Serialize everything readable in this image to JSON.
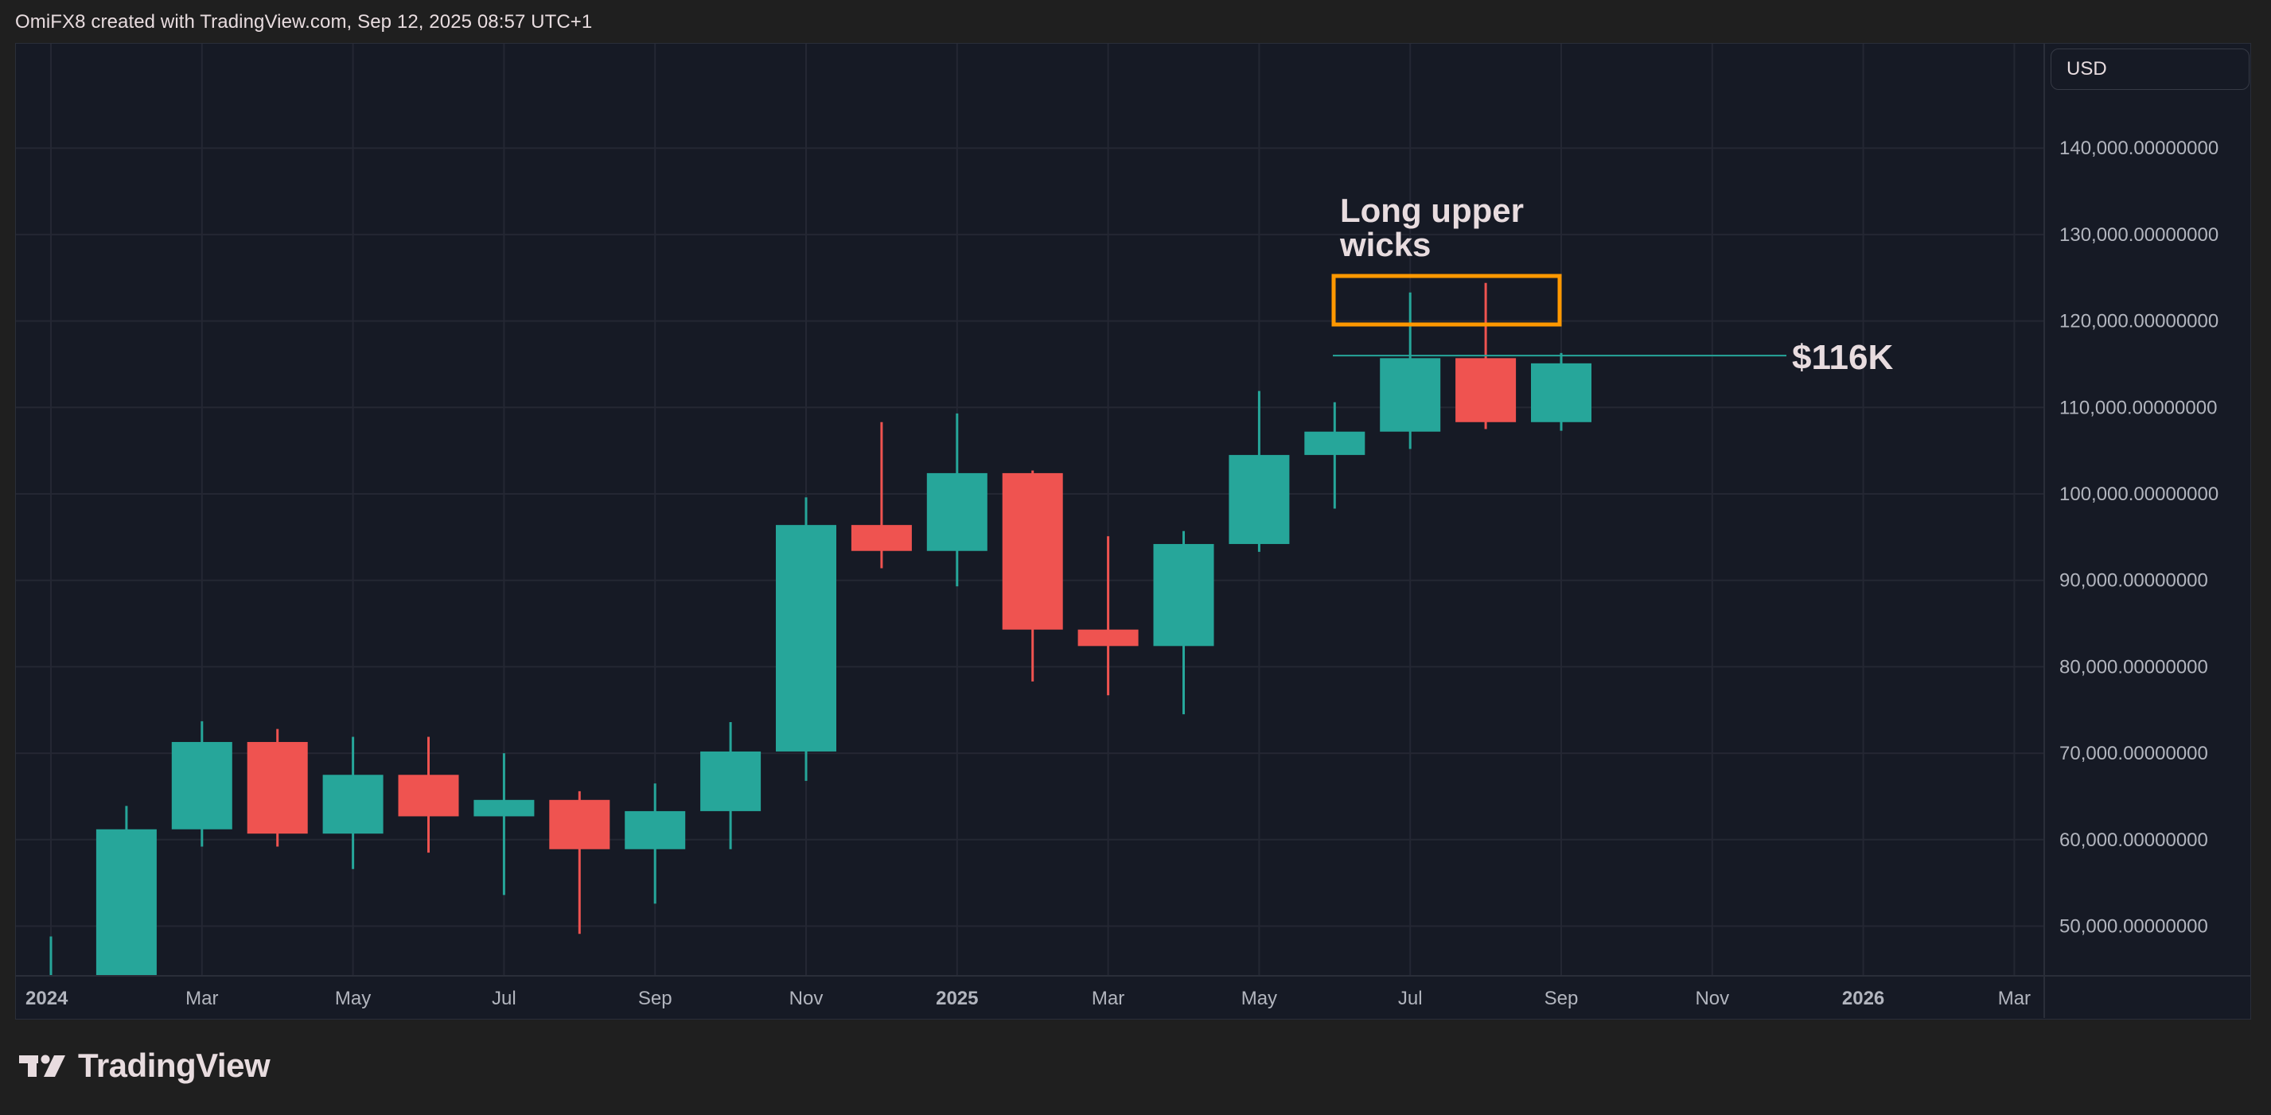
{
  "header": {
    "attribution": "OmiFX8 created with TradingView.com, Sep 12, 2025 08:57 UTC+1"
  },
  "price_scale": {
    "currency": "USD",
    "ticks": [
      "140,000.00000000",
      "130,000.00000000",
      "120,000.00000000",
      "110,000.00000000",
      "100,000.00000000",
      "90,000.00000000",
      "80,000.00000000",
      "70,000.00000000",
      "60,000.00000000",
      "50,000.00000000"
    ]
  },
  "time_scale": {
    "ticks": [
      {
        "label": "2024",
        "bold": true
      },
      {
        "label": "Mar",
        "bold": false
      },
      {
        "label": "May",
        "bold": false
      },
      {
        "label": "Jul",
        "bold": false
      },
      {
        "label": "Sep",
        "bold": false
      },
      {
        "label": "Nov",
        "bold": false
      },
      {
        "label": "2025",
        "bold": true
      },
      {
        "label": "Mar",
        "bold": false
      },
      {
        "label": "May",
        "bold": false
      },
      {
        "label": "Jul",
        "bold": false
      },
      {
        "label": "Sep",
        "bold": false
      },
      {
        "label": "Nov",
        "bold": false
      },
      {
        "label": "2026",
        "bold": true
      },
      {
        "label": "Mar",
        "bold": false
      }
    ]
  },
  "annotations": {
    "text_line1": "Long upper",
    "text_line2": "wicks",
    "level_label": "$116K",
    "box_color": "#ff9800",
    "level_line_color": "#26a69a"
  },
  "colors": {
    "up": "#26a69a",
    "down": "#ef5350",
    "background": "#161a25",
    "grid": "#242733",
    "axis_text": "#b2b5be"
  },
  "footer": {
    "logo_text": "TradingView"
  },
  "chart_data": {
    "type": "candlestick",
    "title": "Monthly candles (USD)",
    "interval": "1M",
    "xlabel": "",
    "ylabel": "USD",
    "ylim": [
      43000,
      148000
    ],
    "grid": true,
    "y_ticks": [
      50000,
      60000,
      70000,
      80000,
      90000,
      100000,
      110000,
      120000,
      130000,
      140000
    ],
    "x_ticks": [
      "2024",
      "Mar",
      "May",
      "Jul",
      "Sep",
      "Nov",
      "2025",
      "Mar",
      "May",
      "Jul",
      "Sep",
      "Nov",
      "2026",
      "Mar"
    ],
    "candles": [
      {
        "month": "2024-01",
        "open": 42500,
        "high": 48800,
        "low": 38500,
        "close": 42600
      },
      {
        "month": "2024-02",
        "open": 42600,
        "high": 63900,
        "low": 42500,
        "close": 61200
      },
      {
        "month": "2024-03",
        "open": 61200,
        "high": 73700,
        "low": 59200,
        "close": 71300
      },
      {
        "month": "2024-04",
        "open": 71300,
        "high": 72800,
        "low": 59200,
        "close": 60700
      },
      {
        "month": "2024-05",
        "open": 60700,
        "high": 71900,
        "low": 56600,
        "close": 67500
      },
      {
        "month": "2024-06",
        "open": 67500,
        "high": 71900,
        "low": 58500,
        "close": 62700
      },
      {
        "month": "2024-07",
        "open": 62700,
        "high": 70000,
        "low": 53600,
        "close": 64600
      },
      {
        "month": "2024-08",
        "open": 64600,
        "high": 65600,
        "low": 49100,
        "close": 58900
      },
      {
        "month": "2024-09",
        "open": 58900,
        "high": 66500,
        "low": 52600,
        "close": 63300
      },
      {
        "month": "2024-10",
        "open": 63300,
        "high": 73600,
        "low": 58900,
        "close": 70200
      },
      {
        "month": "2024-11",
        "open": 70200,
        "high": 99600,
        "low": 66800,
        "close": 96400
      },
      {
        "month": "2024-12",
        "open": 96400,
        "high": 108300,
        "low": 91400,
        "close": 93400
      },
      {
        "month": "2025-01",
        "open": 93400,
        "high": 109300,
        "low": 89300,
        "close": 102400
      },
      {
        "month": "2025-02",
        "open": 102400,
        "high": 102700,
        "low": 78300,
        "close": 84300
      },
      {
        "month": "2025-03",
        "open": 84300,
        "high": 95100,
        "low": 76700,
        "close": 82400
      },
      {
        "month": "2025-04",
        "open": 82400,
        "high": 95700,
        "low": 74500,
        "close": 94200
      },
      {
        "month": "2025-05",
        "open": 94200,
        "high": 111900,
        "low": 93300,
        "close": 104500
      },
      {
        "month": "2025-06",
        "open": 104500,
        "high": 110600,
        "low": 98300,
        "close": 107200
      },
      {
        "month": "2025-07",
        "open": 107200,
        "high": 123300,
        "low": 105200,
        "close": 115700
      },
      {
        "month": "2025-08",
        "open": 115700,
        "high": 124400,
        "low": 107500,
        "close": 108300
      },
      {
        "month": "2025-09",
        "open": 108300,
        "high": 116300,
        "low": 107300,
        "close": 115100
      }
    ],
    "annotations": [
      {
        "type": "text",
        "text": "Long upper wicks"
      },
      {
        "type": "rectangle",
        "color": "#ff9800",
        "x_range": [
          "2025-06",
          "2025-09"
        ],
        "y_range": [
          119800,
          125800
        ]
      },
      {
        "type": "horizontal_segment",
        "value": 116000,
        "label": "$116K",
        "x_range": [
          "2025-06",
          "2025-12"
        ]
      }
    ]
  }
}
